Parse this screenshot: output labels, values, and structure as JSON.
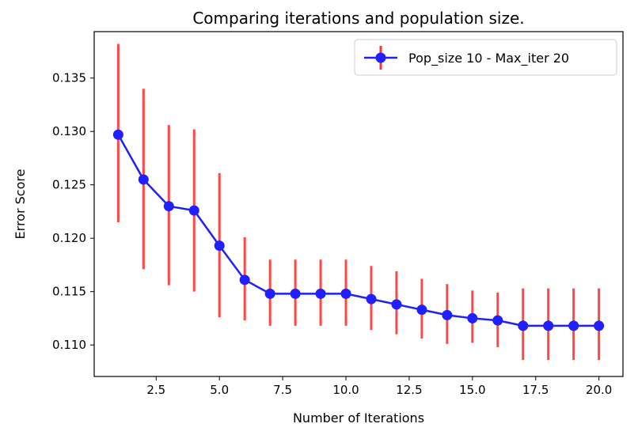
{
  "chart_data": {
    "type": "line",
    "title": "Comparing iterations and population size.",
    "xlabel": "Number of Iterations",
    "ylabel": "Error Score",
    "xlim": [
      0.05,
      20.95
    ],
    "ylim": [
      0.10705,
      0.13935
    ],
    "xticks": [
      2.5,
      5.0,
      7.5,
      10.0,
      12.5,
      15.0,
      17.5,
      20.0
    ],
    "xtick_labels": [
      "2.5",
      "5.0",
      "7.5",
      "10.0",
      "12.5",
      "15.0",
      "17.5",
      "20.0"
    ],
    "yticks": [
      0.11,
      0.115,
      0.12,
      0.125,
      0.13,
      0.135
    ],
    "ytick_labels": [
      "0.110",
      "0.115",
      "0.120",
      "0.125",
      "0.130",
      "0.135"
    ],
    "grid": false,
    "legend_position": "top-right",
    "series": [
      {
        "name": "Pop_size 10 - Max_iter 20",
        "color": "#1f1fff",
        "errorbar_color": "#ff3333",
        "x": [
          1,
          2,
          3,
          4,
          5,
          6,
          7,
          8,
          9,
          10,
          11,
          12,
          13,
          14,
          15,
          16,
          17,
          18,
          19,
          20
        ],
        "y": [
          0.1297,
          0.1255,
          0.123,
          0.1226,
          0.1193,
          0.1161,
          0.1148,
          0.1148,
          0.1148,
          0.1148,
          0.1143,
          0.1138,
          0.1133,
          0.1128,
          0.1125,
          0.1123,
          0.1118,
          0.1118,
          0.1118,
          0.1118
        ],
        "yerr_low": [
          0.1215,
          0.1171,
          0.1156,
          0.115,
          0.1126,
          0.1123,
          0.1118,
          0.1118,
          0.1118,
          0.1118,
          0.1114,
          0.111,
          0.1106,
          0.1101,
          0.1102,
          0.1098,
          0.1086,
          0.1086,
          0.1086,
          0.1086
        ],
        "yerr_high": [
          0.1382,
          0.134,
          0.1306,
          0.1302,
          0.1261,
          0.1201,
          0.118,
          0.118,
          0.118,
          0.118,
          0.1174,
          0.1169,
          0.1162,
          0.1157,
          0.1151,
          0.1149,
          0.1153,
          0.1153,
          0.1153,
          0.1153
        ]
      }
    ]
  }
}
